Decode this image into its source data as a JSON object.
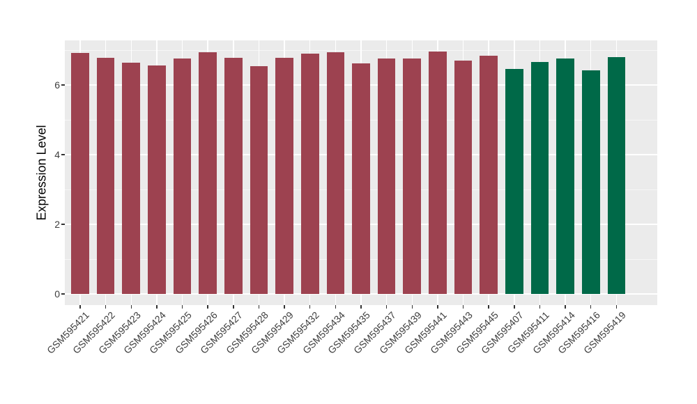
{
  "figure": {
    "background": "#FFFFFF"
  },
  "y_axis": {
    "title": "Expression Level"
  },
  "chart_data": {
    "type": "bar",
    "title": "",
    "xlabel": "",
    "ylabel": "Expression Level",
    "yticks": [
      0,
      2,
      4,
      6
    ],
    "minor_yticks": [
      1,
      3,
      5,
      7
    ],
    "ylim": [
      -0.32,
      7.28
    ],
    "grid": true,
    "legend": "none",
    "panel_bg": "#EBEBEB",
    "grid_major_color": "#FFFFFF",
    "grid_minor_color": "#F6F6F6",
    "tick_color": "#333333",
    "tick_label_color": "#3D3D3D",
    "bar_width": 0.7,
    "x_expand": 0.6,
    "categories": [
      "GSM595421",
      "GSM595422",
      "GSM595423",
      "GSM595424",
      "GSM595425",
      "GSM595426",
      "GSM595427",
      "GSM595428",
      "GSM595429",
      "GSM595432",
      "GSM595434",
      "GSM595435",
      "GSM595437",
      "GSM595439",
      "GSM595441",
      "GSM595443",
      "GSM595445",
      "GSM595407",
      "GSM595411",
      "GSM595414",
      "GSM595416",
      "GSM595419"
    ],
    "values": [
      6.92,
      6.79,
      6.65,
      6.57,
      6.77,
      6.95,
      6.79,
      6.55,
      6.79,
      6.91,
      6.95,
      6.63,
      6.77,
      6.77,
      6.96,
      6.71,
      6.85,
      6.47,
      6.66,
      6.76,
      6.43,
      6.81
    ],
    "bar_groups": [
      "group1",
      "group1",
      "group1",
      "group1",
      "group1",
      "group1",
      "group1",
      "group1",
      "group1",
      "group1",
      "group1",
      "group1",
      "group1",
      "group1",
      "group1",
      "group1",
      "group1",
      "group2",
      "group2",
      "group2",
      "group2",
      "group2"
    ],
    "group_colors": {
      "group1": "#9D4250",
      "group2": "#006948"
    }
  }
}
